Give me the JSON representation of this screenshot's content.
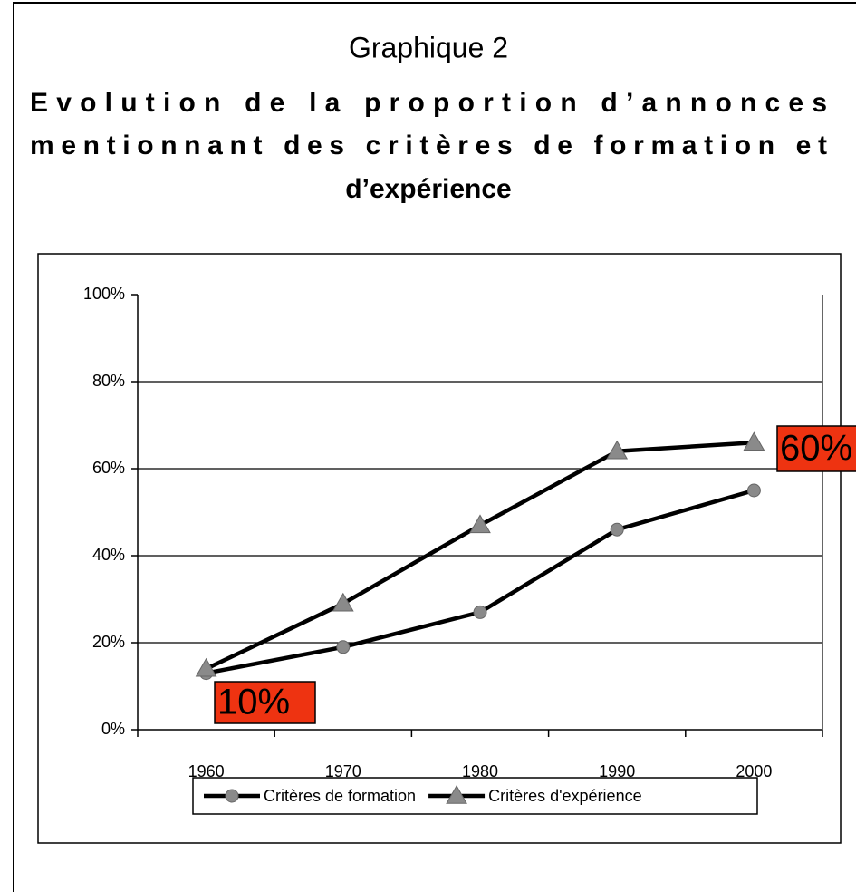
{
  "chart_data": {
    "type": "line",
    "title": "Graphique 2",
    "subtitle": [
      "Evolution de la proportion d’annonces",
      "mentionnant des critères de formation et",
      "d’expérience"
    ],
    "categories": [
      "1960",
      "1970",
      "1980",
      "1990",
      "2000"
    ],
    "series": [
      {
        "name": "Critères de formation",
        "color": "#000000",
        "marker": "circle",
        "values": [
          13,
          19,
          27,
          46,
          55
        ]
      },
      {
        "name": "Critères d'expérience",
        "color": "#000000",
        "marker": "triangle",
        "values": [
          14,
          29,
          47,
          64,
          66
        ]
      }
    ],
    "ylim": [
      0,
      100
    ],
    "yticks": [
      {
        "value": 0,
        "label": "0%"
      },
      {
        "value": 20,
        "label": "20%"
      },
      {
        "value": 40,
        "label": "40%"
      },
      {
        "value": 60,
        "label": "60%"
      },
      {
        "value": 80,
        "label": "80%"
      },
      {
        "value": 100,
        "label": "100%"
      }
    ],
    "grid": true,
    "legend": "bottom",
    "annotations": [
      "10%",
      "60%"
    ]
  }
}
